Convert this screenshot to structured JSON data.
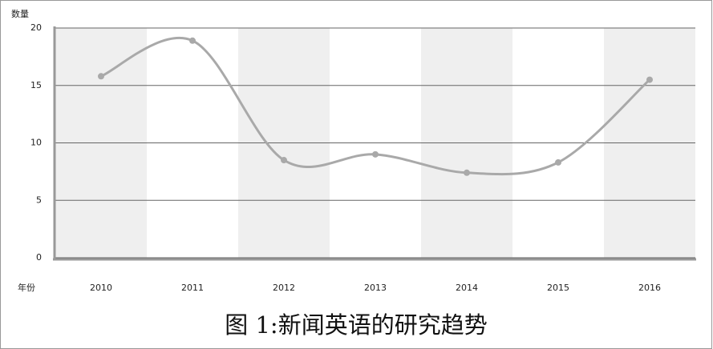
{
  "chart_data": {
    "type": "line",
    "title": "图 1:新闻英语的研究趋势",
    "y_label": "数量",
    "x_label": "年份",
    "categories": [
      "2010",
      "2011",
      "2012",
      "2013",
      "2014",
      "2015",
      "2016"
    ],
    "values": [
      15.8,
      18.9,
      8.5,
      9.0,
      7.4,
      8.3,
      15.5
    ],
    "color": "#a9a9a9",
    "band_color": "#efefef",
    "ylim": [
      0,
      20
    ],
    "yticks": [
      0,
      5,
      10,
      15,
      20
    ],
    "grid": true
  }
}
